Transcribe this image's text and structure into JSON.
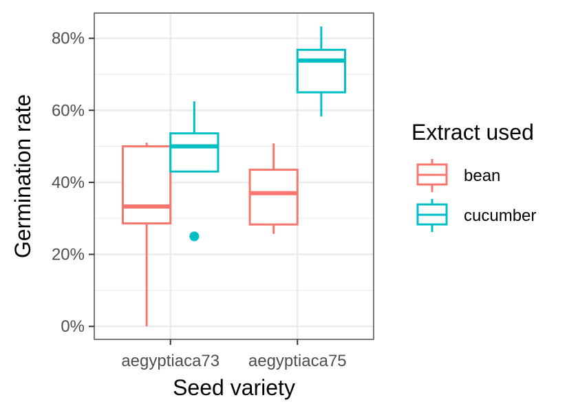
{
  "chart_data": {
    "type": "boxplot",
    "xlabel": "Seed variety",
    "ylabel": "Germination rate",
    "categories": [
      "aegyptiaca73",
      "aegyptiaca75"
    ],
    "y_ticks": [
      0,
      20,
      40,
      60,
      80
    ],
    "y_tick_labels": [
      "0%",
      "20%",
      "40%",
      "60%",
      "80%"
    ],
    "ylim": [
      -3.6,
      87
    ],
    "grid": true,
    "legend": {
      "title": "Extract used",
      "position": "right",
      "entries": [
        "bean",
        "cucumber"
      ]
    },
    "series": [
      {
        "name": "bean",
        "color": "#F8766D",
        "boxes": [
          {
            "category": "aegyptiaca73",
            "min": 0,
            "q1": 28.6,
            "median": 33.3,
            "q3": 50,
            "max": 51,
            "outliers": []
          },
          {
            "category": "aegyptiaca75",
            "min": 25.7,
            "q1": 28.3,
            "median": 37,
            "q3": 43.5,
            "max": 50.8,
            "outliers": []
          }
        ]
      },
      {
        "name": "cucumber",
        "color": "#00BFC4",
        "boxes": [
          {
            "category": "aegyptiaca73",
            "min": 43,
            "q1": 43,
            "median": 50,
            "q3": 53.6,
            "max": 62.5,
            "outliers": [
              25
            ]
          },
          {
            "category": "aegyptiaca75",
            "min": 58.3,
            "q1": 65,
            "median": 73.8,
            "q3": 76.8,
            "max": 83.3,
            "outliers": []
          }
        ]
      }
    ]
  }
}
